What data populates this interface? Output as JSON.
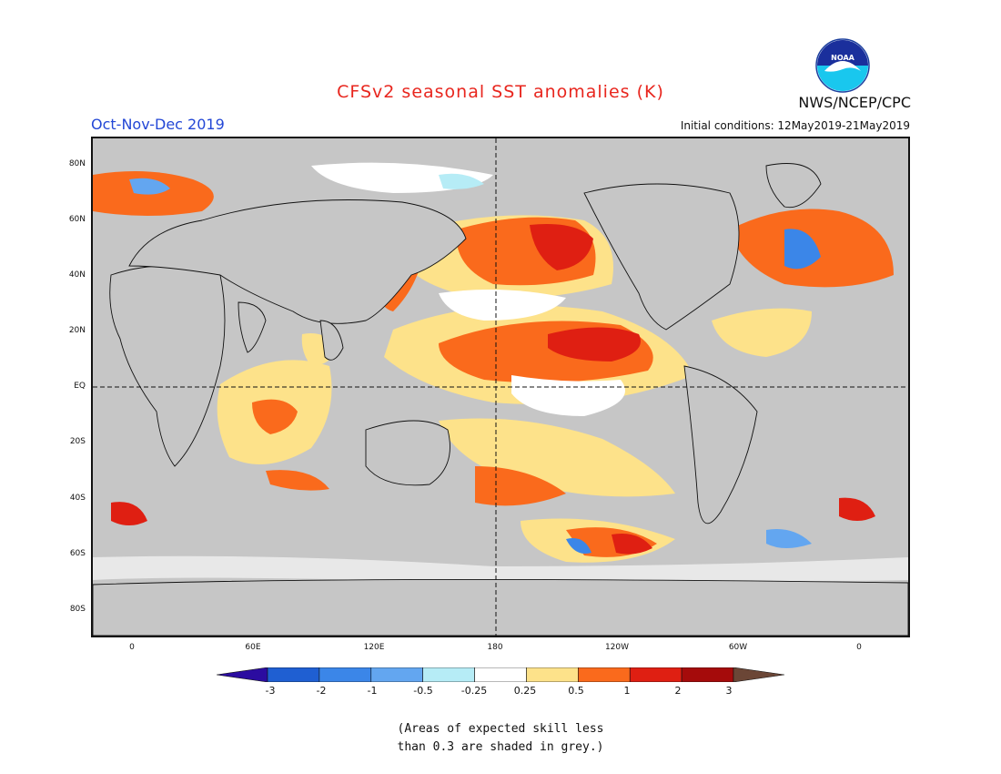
{
  "header": {
    "title": "CFSv2 seasonal SST anomalies (K)",
    "period": "Oct-Nov-Dec 2019",
    "initial_conditions": "Initial conditions: 12May2019-21May2019",
    "agency": "NWS/NCEP/CPC",
    "logo_text": "NOAA"
  },
  "map": {
    "lat_labels": [
      "80N",
      "60N",
      "40N",
      "20N",
      "EQ",
      "20S",
      "40S",
      "60S",
      "80S"
    ],
    "lon_labels": [
      "0",
      "60E",
      "120E",
      "180",
      "120W",
      "60W",
      "0"
    ],
    "equator_line": "dashed",
    "dateline": "dashed",
    "colors": {
      "land": "#c6c6c6",
      "ocean_low_skill": "#c6c6c6",
      "neutral": "#ffffff",
      "coast": "#111111"
    }
  },
  "colorbar": {
    "labels": [
      "-3",
      "-2",
      "-1",
      "-0.5",
      "-0.25",
      "0.25",
      "0.5",
      "1",
      "2",
      "3"
    ],
    "colors": [
      "#2b0ca0",
      "#1f5fd2",
      "#3b86e8",
      "#63a6f0",
      "#b6ecf6",
      "#ffffff",
      "#fde28a",
      "#fa6a1c",
      "#df1f12",
      "#a50b0b",
      "#6b4636"
    ]
  },
  "footnote": {
    "line1": "(Areas of expected skill less",
    "line2": "than 0.3 are shaded in grey.)"
  }
}
